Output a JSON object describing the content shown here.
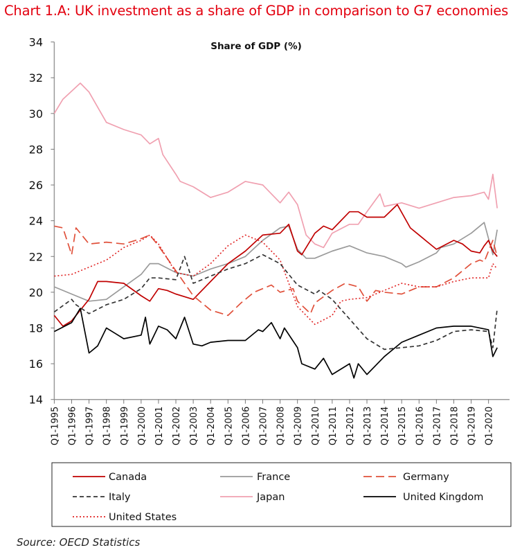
{
  "chart_data": {
    "type": "line",
    "title": "Chart 1.A: UK investment as a share of GDP in comparison to G7 economies",
    "subtitle": "Share of GDP (%)",
    "source": "Source: OECD Statistics",
    "xlabel": "",
    "ylabel": "",
    "ylim": [
      14,
      34
    ],
    "yticks": [
      14,
      16,
      18,
      20,
      22,
      24,
      26,
      28,
      30,
      32,
      34
    ],
    "xticks": [
      "Q1-1995",
      "Q1-1996",
      "Q1-1997",
      "Q1-1998",
      "Q1-1999",
      "Q1-2000",
      "Q1-2001",
      "Q1-2002",
      "Q1-2003",
      "Q1-2004",
      "Q1-2005",
      "Q1-2006",
      "Q1-2007",
      "Q1-2008",
      "Q1-2009",
      "Q1-2010",
      "Q1-2011",
      "Q1-2012",
      "Q1-2013",
      "Q1-2014",
      "Q1-2015",
      "Q1-2016",
      "Q1-2017",
      "Q1-2018",
      "Q1-2019",
      "Q1-2020"
    ],
    "grid": false,
    "legend_placement": "bottom",
    "series": [
      {
        "name": "Canada",
        "color": "#c00000",
        "dash": "solid",
        "points": [
          [
            "Q1-1995",
            18.7
          ],
          [
            "Q3-1995",
            18.1
          ],
          [
            "Q1-1996",
            18.4
          ],
          [
            "Q1-1997",
            19.6
          ],
          [
            "Q3-1997",
            20.6
          ],
          [
            "Q1-1998",
            20.6
          ],
          [
            "Q1-1999",
            20.5
          ],
          [
            "Q1-2000",
            19.8
          ],
          [
            "Q3-2000",
            19.5
          ],
          [
            "Q1-2001",
            20.2
          ],
          [
            "Q3-2001",
            20.1
          ],
          [
            "Q1-2002",
            19.9
          ],
          [
            "Q1-2003",
            19.6
          ],
          [
            "Q1-2004",
            20.6
          ],
          [
            "Q1-2005",
            21.6
          ],
          [
            "Q1-2006",
            22.3
          ],
          [
            "Q1-2007",
            23.2
          ],
          [
            "Q1-2008",
            23.3
          ],
          [
            "Q3-2008",
            23.8
          ],
          [
            "Q1-2009",
            22.3
          ],
          [
            "Q2-2009",
            22.1
          ],
          [
            "Q1-2010",
            23.3
          ],
          [
            "Q3-2010",
            23.7
          ],
          [
            "Q1-2011",
            23.5
          ],
          [
            "Q1-2012",
            24.5
          ],
          [
            "Q3-2012",
            24.5
          ],
          [
            "Q1-2013",
            24.2
          ],
          [
            "Q1-2014",
            24.2
          ],
          [
            "Q4-2014",
            24.9
          ],
          [
            "Q3-2015",
            23.6
          ],
          [
            "Q1-2016",
            23.2
          ],
          [
            "Q3-2016",
            22.8
          ],
          [
            "Q1-2017",
            22.4
          ],
          [
            "Q1-2018",
            22.9
          ],
          [
            "Q3-2018",
            22.7
          ],
          [
            "Q1-2019",
            22.3
          ],
          [
            "Q3-2019",
            22.2
          ],
          [
            "Q4-2019",
            22.6
          ],
          [
            "Q1-2020",
            22.9
          ],
          [
            "Q2-2020",
            22.3
          ],
          [
            "Q3-2020",
            22.0
          ]
        ]
      },
      {
        "name": "France",
        "color": "#9a9a9a",
        "dash": "solid",
        "points": [
          [
            "Q1-1995",
            20.3
          ],
          [
            "Q1-1996",
            19.9
          ],
          [
            "Q1-1997",
            19.5
          ],
          [
            "Q1-1998",
            19.6
          ],
          [
            "Q1-1999",
            20.3
          ],
          [
            "Q1-2000",
            21.0
          ],
          [
            "Q3-2000",
            21.6
          ],
          [
            "Q1-2001",
            21.6
          ],
          [
            "Q1-2002",
            21.1
          ],
          [
            "Q1-2003",
            20.9
          ],
          [
            "Q1-2004",
            21.3
          ],
          [
            "Q1-2005",
            21.6
          ],
          [
            "Q1-2006",
            22.0
          ],
          [
            "Q1-2007",
            22.9
          ],
          [
            "Q1-2008",
            23.6
          ],
          [
            "Q3-2008",
            23.7
          ],
          [
            "Q1-2009",
            22.4
          ],
          [
            "Q3-2009",
            21.9
          ],
          [
            "Q1-2010",
            21.9
          ],
          [
            "Q1-2011",
            22.3
          ],
          [
            "Q1-2012",
            22.6
          ],
          [
            "Q1-2013",
            22.2
          ],
          [
            "Q1-2014",
            22.0
          ],
          [
            "Q1-2015",
            21.6
          ],
          [
            "Q2-2015",
            21.4
          ],
          [
            "Q1-2016",
            21.7
          ],
          [
            "Q1-2017",
            22.2
          ],
          [
            "Q2-2017",
            22.5
          ],
          [
            "Q1-2018",
            22.7
          ],
          [
            "Q1-2019",
            23.3
          ],
          [
            "Q4-2019",
            23.9
          ],
          [
            "Q2-2020",
            22.1
          ],
          [
            "Q3-2020",
            23.5
          ]
        ]
      },
      {
        "name": "Germany",
        "color": "#e0503a",
        "dash": "12,6",
        "points": [
          [
            "Q1-1995",
            23.7
          ],
          [
            "Q3-1995",
            23.6
          ],
          [
            "Q1-1996",
            22.1
          ],
          [
            "Q2-1996",
            23.6
          ],
          [
            "Q1-1997",
            22.7
          ],
          [
            "Q1-1998",
            22.8
          ],
          [
            "Q1-1999",
            22.7
          ],
          [
            "Q1-2000",
            23.0
          ],
          [
            "Q3-2000",
            23.2
          ],
          [
            "Q1-2001",
            22.6
          ],
          [
            "Q1-2002",
            21.2
          ],
          [
            "Q1-2003",
            19.8
          ],
          [
            "Q1-2004",
            19.0
          ],
          [
            "Q1-2005",
            18.7
          ],
          [
            "Q4-2005",
            19.4
          ],
          [
            "Q3-2006",
            20.0
          ],
          [
            "Q1-2007",
            20.2
          ],
          [
            "Q3-2007",
            20.4
          ],
          [
            "Q1-2008",
            20.0
          ],
          [
            "Q4-2008",
            20.2
          ],
          [
            "Q1-2009",
            19.5
          ],
          [
            "Q4-2009",
            18.8
          ],
          [
            "Q1-2010",
            19.4
          ],
          [
            "Q1-2011",
            20.1
          ],
          [
            "Q4-2011",
            20.5
          ],
          [
            "Q3-2012",
            20.3
          ],
          [
            "Q1-2013",
            19.5
          ],
          [
            "Q3-2013",
            20.1
          ],
          [
            "Q1-2014",
            20.0
          ],
          [
            "Q1-2015",
            19.9
          ],
          [
            "Q1-2016",
            20.3
          ],
          [
            "Q1-2017",
            20.3
          ],
          [
            "Q1-2018",
            20.8
          ],
          [
            "Q1-2019",
            21.6
          ],
          [
            "Q3-2019",
            21.8
          ],
          [
            "Q4-2019",
            21.7
          ],
          [
            "Q1-2020",
            22.3
          ],
          [
            "Q2-2020",
            22.9
          ],
          [
            "Q3-2020",
            22.0
          ]
        ]
      },
      {
        "name": "Italy",
        "color": "#333333",
        "dash": "6,4",
        "points": [
          [
            "Q1-1995",
            18.9
          ],
          [
            "Q1-1996",
            19.6
          ],
          [
            "Q2-1996",
            19.3
          ],
          [
            "Q1-1997",
            18.8
          ],
          [
            "Q1-1998",
            19.3
          ],
          [
            "Q1-1999",
            19.6
          ],
          [
            "Q1-2000",
            20.2
          ],
          [
            "Q3-2000",
            20.8
          ],
          [
            "Q1-2001",
            20.8
          ],
          [
            "Q1-2002",
            20.7
          ],
          [
            "Q3-2002",
            22.0
          ],
          [
            "Q1-2003",
            20.5
          ],
          [
            "Q1-2004",
            20.9
          ],
          [
            "Q1-2005",
            21.3
          ],
          [
            "Q1-2006",
            21.6
          ],
          [
            "Q1-2007",
            22.1
          ],
          [
            "Q1-2008",
            21.6
          ],
          [
            "Q3-2008",
            21.0
          ],
          [
            "Q1-2009",
            20.4
          ],
          [
            "Q1-2010",
            19.9
          ],
          [
            "Q2-2010",
            20.1
          ],
          [
            "Q1-2011",
            19.6
          ],
          [
            "Q1-2012",
            18.5
          ],
          [
            "Q1-2013",
            17.4
          ],
          [
            "Q1-2014",
            16.8
          ],
          [
            "Q1-2015",
            16.9
          ],
          [
            "Q1-2016",
            17.0
          ],
          [
            "Q1-2017",
            17.3
          ],
          [
            "Q1-2018",
            17.8
          ],
          [
            "Q1-2019",
            17.9
          ],
          [
            "Q1-2020",
            17.8
          ],
          [
            "Q2-2020",
            16.9
          ],
          [
            "Q3-2020",
            19.1
          ]
        ]
      },
      {
        "name": "Japan",
        "color": "#f0a0b0",
        "dash": "solid",
        "points": [
          [
            "Q1-1995",
            30.0
          ],
          [
            "Q3-1995",
            30.8
          ],
          [
            "Q3-1996",
            31.7
          ],
          [
            "Q1-1997",
            31.2
          ],
          [
            "Q1-1998",
            29.5
          ],
          [
            "Q1-1999",
            29.1
          ],
          [
            "Q1-2000",
            28.8
          ],
          [
            "Q3-2000",
            28.3
          ],
          [
            "Q1-2001",
            28.6
          ],
          [
            "Q2-2001",
            27.7
          ],
          [
            "Q1-2002",
            26.6
          ],
          [
            "Q2-2002",
            26.2
          ],
          [
            "Q1-2003",
            25.9
          ],
          [
            "Q1-2004",
            25.3
          ],
          [
            "Q1-2005",
            25.6
          ],
          [
            "Q1-2006",
            26.2
          ],
          [
            "Q1-2007",
            26.0
          ],
          [
            "Q1-2008",
            25.0
          ],
          [
            "Q3-2008",
            25.6
          ],
          [
            "Q1-2009",
            24.9
          ],
          [
            "Q3-2009",
            23.2
          ],
          [
            "Q1-2010",
            22.7
          ],
          [
            "Q3-2010",
            22.5
          ],
          [
            "Q1-2011",
            23.3
          ],
          [
            "Q1-2012",
            23.8
          ],
          [
            "Q3-2012",
            23.8
          ],
          [
            "Q1-2013",
            24.5
          ],
          [
            "Q4-2013",
            25.5
          ],
          [
            "Q1-2014",
            24.8
          ],
          [
            "Q1-2015",
            25.0
          ],
          [
            "Q1-2016",
            24.7
          ],
          [
            "Q1-2017",
            25.0
          ],
          [
            "Q1-2018",
            25.3
          ],
          [
            "Q1-2019",
            25.4
          ],
          [
            "Q4-2019",
            25.6
          ],
          [
            "Q1-2020",
            25.2
          ],
          [
            "Q2-2020",
            26.6
          ],
          [
            "Q3-2020",
            24.7
          ]
        ]
      },
      {
        "name": "United Kingdom",
        "color": "#000000",
        "dash": "solid",
        "points": [
          [
            "Q1-1995",
            17.8
          ],
          [
            "Q1-1996",
            18.3
          ],
          [
            "Q3-1996",
            19.1
          ],
          [
            "Q1-1997",
            16.6
          ],
          [
            "Q3-1997",
            17.0
          ],
          [
            "Q1-1998",
            18.0
          ],
          [
            "Q3-1998",
            17.7
          ],
          [
            "Q1-1999",
            17.4
          ],
          [
            "Q1-2000",
            17.6
          ],
          [
            "Q2-2000",
            18.6
          ],
          [
            "Q3-2000",
            17.1
          ],
          [
            "Q1-2001",
            18.1
          ],
          [
            "Q3-2001",
            17.9
          ],
          [
            "Q1-2002",
            17.4
          ],
          [
            "Q3-2002",
            18.6
          ],
          [
            "Q1-2003",
            17.1
          ],
          [
            "Q3-2003",
            17.0
          ],
          [
            "Q1-2004",
            17.2
          ],
          [
            "Q1-2005",
            17.3
          ],
          [
            "Q1-2006",
            17.3
          ],
          [
            "Q4-2006",
            17.9
          ],
          [
            "Q1-2007",
            17.8
          ],
          [
            "Q3-2007",
            18.3
          ],
          [
            "Q1-2008",
            17.4
          ],
          [
            "Q2-2008",
            18.0
          ],
          [
            "Q1-2009",
            16.9
          ],
          [
            "Q2-2009",
            16.0
          ],
          [
            "Q1-2010",
            15.7
          ],
          [
            "Q3-2010",
            16.3
          ],
          [
            "Q1-2011",
            15.4
          ],
          [
            "Q1-2012",
            16.0
          ],
          [
            "Q2-2012",
            15.2
          ],
          [
            "Q3-2012",
            16.0
          ],
          [
            "Q1-2013",
            15.4
          ],
          [
            "Q1-2014",
            16.4
          ],
          [
            "Q1-2015",
            17.2
          ],
          [
            "Q1-2016",
            17.6
          ],
          [
            "Q1-2017",
            18.0
          ],
          [
            "Q1-2018",
            18.1
          ],
          [
            "Q1-2019",
            18.1
          ],
          [
            "Q1-2020",
            17.9
          ],
          [
            "Q2-2020",
            16.4
          ],
          [
            "Q3-2020",
            16.9
          ]
        ]
      },
      {
        "name": "United States",
        "color": "#e02020",
        "dash": "2,3",
        "points": [
          [
            "Q1-1995",
            20.9
          ],
          [
            "Q1-1996",
            21.0
          ],
          [
            "Q1-1997",
            21.4
          ],
          [
            "Q1-1998",
            21.8
          ],
          [
            "Q1-1999",
            22.5
          ],
          [
            "Q1-2000",
            22.9
          ],
          [
            "Q3-2000",
            23.2
          ],
          [
            "Q1-2001",
            22.7
          ],
          [
            "Q1-2002",
            21.1
          ],
          [
            "Q1-2003",
            20.9
          ],
          [
            "Q1-2004",
            21.6
          ],
          [
            "Q1-2005",
            22.6
          ],
          [
            "Q1-2006",
            23.2
          ],
          [
            "Q1-2007",
            22.8
          ],
          [
            "Q1-2008",
            21.8
          ],
          [
            "Q1-2009",
            19.2
          ],
          [
            "Q1-2010",
            18.2
          ],
          [
            "Q1-2011",
            18.7
          ],
          [
            "Q3-2011",
            19.5
          ],
          [
            "Q1-2012",
            19.6
          ],
          [
            "Q1-2013",
            19.7
          ],
          [
            "Q1-2014",
            20.1
          ],
          [
            "Q1-2015",
            20.5
          ],
          [
            "Q1-2016",
            20.3
          ],
          [
            "Q1-2017",
            20.3
          ],
          [
            "Q1-2018",
            20.6
          ],
          [
            "Q1-2019",
            20.8
          ],
          [
            "Q1-2020",
            20.8
          ],
          [
            "Q2-2020",
            21.6
          ],
          [
            "Q3-2020",
            21.3
          ]
        ]
      }
    ]
  }
}
